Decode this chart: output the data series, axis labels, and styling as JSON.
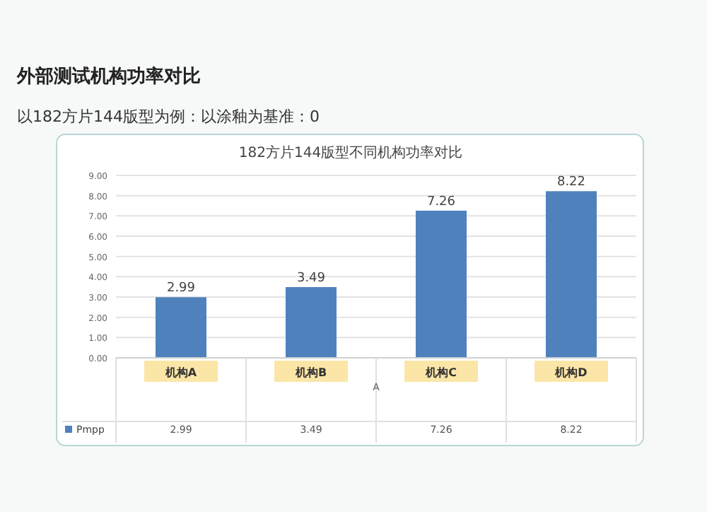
{
  "chart_data": {
    "type": "bar",
    "title": "182方片144版型不同机构功率对比",
    "subtitle": "外部测试机构功率对比",
    "annotations": [
      "以182方片144版型为例：以涂釉为基准：0",
      "2.99",
      "3.49",
      "7.26",
      "8.22"
    ],
    "xlabel": "A",
    "categories": [
      "机构A",
      "机构B",
      "机构C",
      "机构D"
    ],
    "series": [
      {
        "name": "Pmpp",
        "color": "#4f81bd",
        "values": [
          2.99,
          3.49,
          7.26,
          8.22
        ]
      }
    ],
    "ylim": [
      0,
      9
    ],
    "yticks": [
      {
        "value": 0,
        "label": "0.00"
      },
      {
        "value": 1,
        "label": "1.00"
      },
      {
        "value": 2,
        "label": "2.00"
      },
      {
        "value": 3,
        "label": "3.00"
      },
      {
        "value": 4,
        "label": "4.00"
      },
      {
        "value": 5,
        "label": "5.00"
      },
      {
        "value": 6,
        "label": "6.00"
      },
      {
        "value": 7,
        "label": "7.00"
      },
      {
        "value": 8,
        "label": "8.00"
      },
      {
        "value": 9,
        "label": "9.00"
      }
    ],
    "grid": "y",
    "data_labels": true,
    "legend": "bottom"
  }
}
